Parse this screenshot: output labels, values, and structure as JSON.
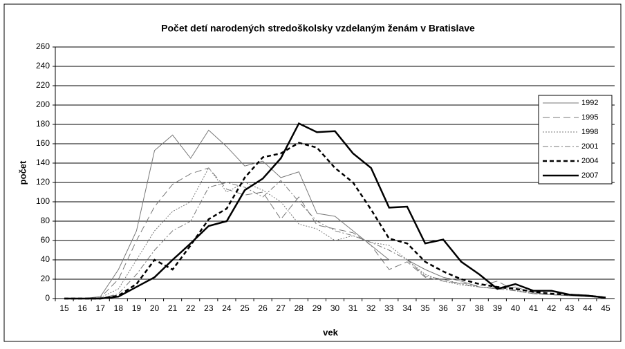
{
  "chart_data": {
    "type": "line",
    "title": "Počet detí narodených stredoškolsky   vzdelaným ženám v Bratislave",
    "xlabel": "vek",
    "ylabel": "počet",
    "categories": [
      15,
      16,
      17,
      18,
      19,
      20,
      21,
      22,
      23,
      24,
      25,
      26,
      27,
      28,
      29,
      30,
      31,
      32,
      33,
      34,
      35,
      36,
      37,
      38,
      39,
      40,
      41,
      42,
      43,
      44,
      45
    ],
    "ylim": [
      0,
      260
    ],
    "yticks": [
      0,
      20,
      40,
      60,
      80,
      100,
      120,
      140,
      160,
      180,
      200,
      220,
      240,
      260
    ],
    "grid": true,
    "series": [
      {
        "name": "1992",
        "color": "#777777",
        "width": 1,
        "dash": "none",
        "values": [
          0,
          0,
          2,
          30,
          70,
          153,
          169,
          145,
          174,
          157,
          137,
          142,
          125,
          131,
          88,
          85,
          70,
          55,
          40,
          40,
          30,
          22,
          18,
          12,
          10,
          12,
          6,
          4,
          3,
          2,
          1
        ]
      },
      {
        "name": "1995",
        "color": "#777777",
        "width": 1,
        "dash": "10 5",
        "values": [
          0,
          0,
          1,
          20,
          60,
          95,
          118,
          129,
          135,
          113,
          107,
          110,
          82,
          105,
          76,
          72,
          68,
          55,
          30,
          38,
          22,
          18,
          16,
          13,
          18,
          8,
          5,
          4,
          3,
          2,
          1
        ]
      },
      {
        "name": "1998",
        "color": "#777777",
        "width": 1,
        "dash": "2 2",
        "values": [
          0,
          0,
          1,
          10,
          40,
          70,
          90,
          100,
          135,
          110,
          120,
          112,
          100,
          77,
          72,
          60,
          65,
          58,
          55,
          40,
          25,
          18,
          14,
          12,
          11,
          9,
          5,
          4,
          3,
          2,
          1
        ]
      },
      {
        "name": "2001",
        "color": "#777777",
        "width": 1,
        "dash": "8 3 2 3",
        "values": [
          0,
          0,
          0,
          5,
          25,
          50,
          70,
          80,
          115,
          120,
          115,
          105,
          122,
          100,
          80,
          70,
          65,
          58,
          50,
          40,
          23,
          20,
          15,
          12,
          10,
          8,
          5,
          4,
          3,
          2,
          1
        ]
      },
      {
        "name": "2004",
        "color": "#000000",
        "width": 2.5,
        "dash": "6 4",
        "values": [
          0,
          0,
          0,
          3,
          15,
          40,
          30,
          55,
          82,
          93,
          125,
          146,
          150,
          161,
          156,
          135,
          120,
          92,
          62,
          57,
          38,
          28,
          20,
          15,
          12,
          10,
          7,
          5,
          4,
          3,
          1
        ]
      },
      {
        "name": "2007",
        "color": "#000000",
        "width": 2.5,
        "dash": "none",
        "values": [
          0,
          0,
          0,
          2,
          12,
          22,
          40,
          57,
          75,
          80,
          112,
          124,
          145,
          181,
          172,
          173,
          150,
          135,
          94,
          95,
          57,
          61,
          38,
          25,
          10,
          15,
          8,
          8,
          4,
          3,
          1
        ]
      }
    ]
  }
}
